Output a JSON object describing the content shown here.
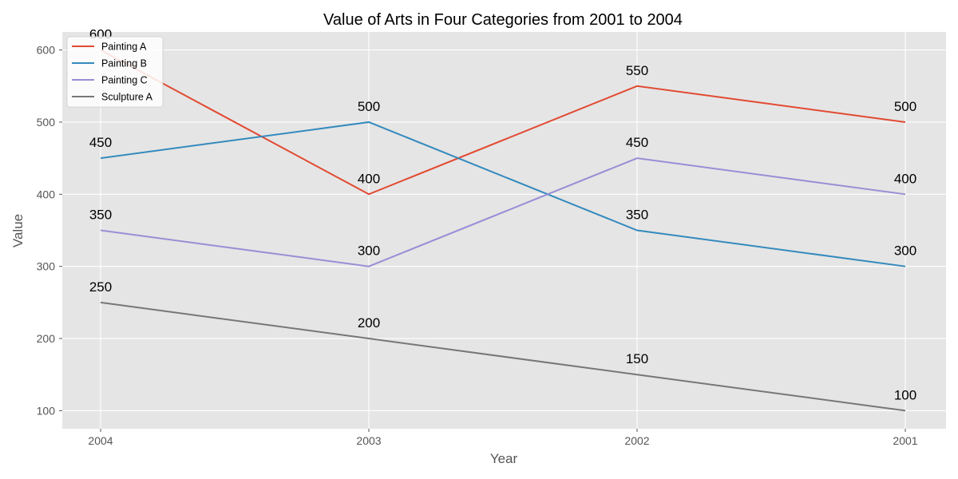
{
  "chart_data": {
    "type": "line",
    "title": "Value of Arts in Four Categories from 2001 to 2004",
    "xlabel": "Year",
    "ylabel": "Value",
    "categories": [
      "2004",
      "2003",
      "2002",
      "2001"
    ],
    "ylim": [
      75,
      625
    ],
    "yticks": [
      100,
      200,
      300,
      400,
      500,
      600
    ],
    "grid": true,
    "legend_position": "top-left",
    "colors": {
      "background": "#e5e5e5",
      "grid": "#ffffff"
    },
    "series": [
      {
        "name": "Painting A",
        "color": "#e24a33",
        "values": [
          600,
          400,
          550,
          500
        ]
      },
      {
        "name": "Painting B",
        "color": "#348abd",
        "values": [
          450,
          500,
          350,
          300
        ]
      },
      {
        "name": "Painting C",
        "color": "#988ed5",
        "values": [
          350,
          300,
          450,
          400
        ]
      },
      {
        "name": "Sculpture A",
        "color": "#777777",
        "values": [
          250,
          200,
          150,
          100
        ]
      }
    ]
  }
}
